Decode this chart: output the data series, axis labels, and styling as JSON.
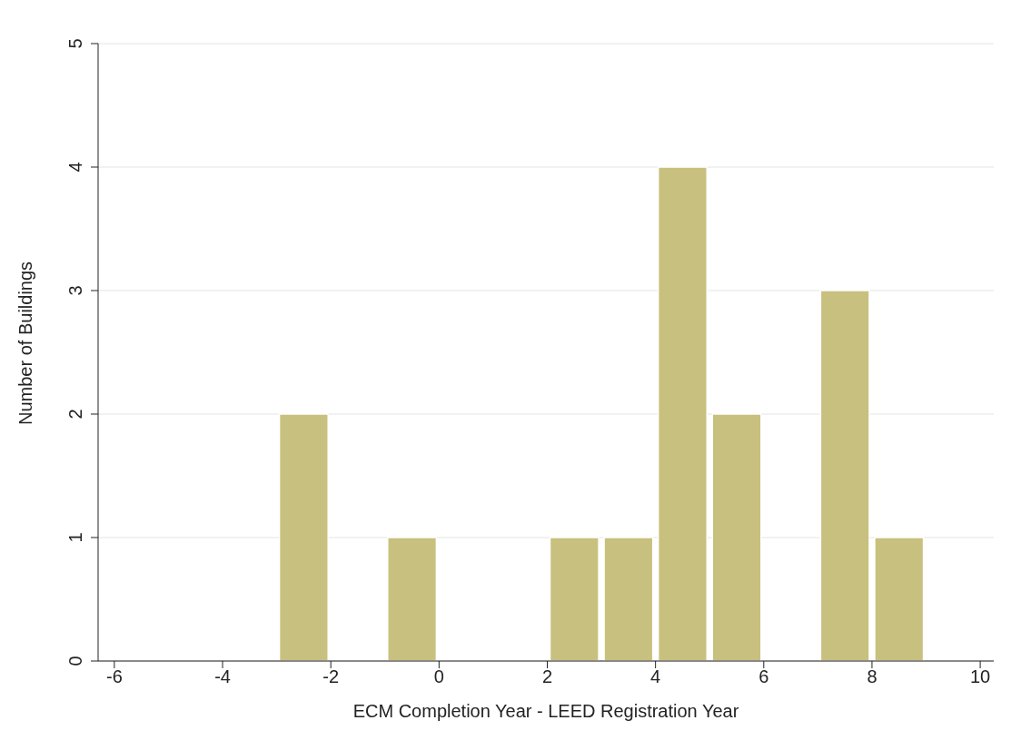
{
  "chart_data": {
    "type": "histogram",
    "xlabel": "ECM Completion Year - LEED Registration Year",
    "ylabel": "Number of Buildings",
    "bins": [
      -3,
      -2,
      -1,
      0,
      1,
      2,
      3,
      4,
      5,
      6,
      7,
      8,
      9
    ],
    "values": [
      2,
      0,
      1,
      0,
      0,
      1,
      1,
      4,
      2,
      0,
      3,
      1
    ],
    "color": "#c8c07e",
    "xlim": [
      -6.3,
      10.25
    ],
    "xticks": [
      -6,
      -4,
      -2,
      0,
      2,
      4,
      6,
      8,
      10
    ],
    "ylim": [
      0,
      5
    ],
    "yticks": [
      0,
      1,
      2,
      3,
      4,
      5
    ],
    "grid": "y"
  }
}
